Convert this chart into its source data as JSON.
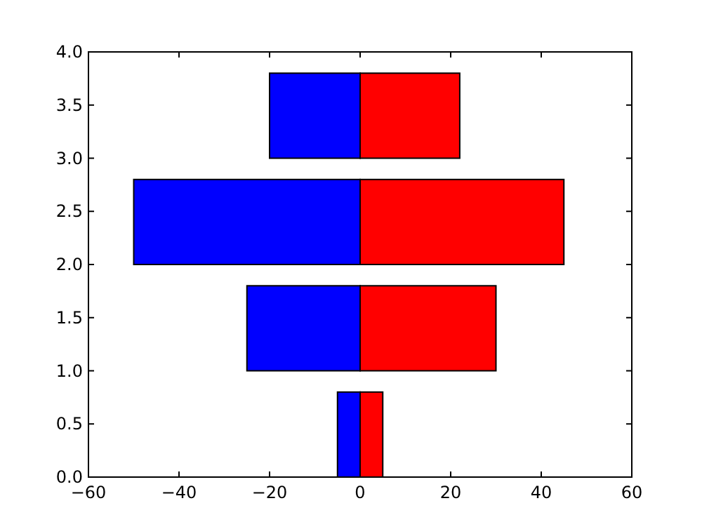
{
  "chart_data": {
    "type": "bar",
    "orientation": "horizontal",
    "x": [
      0.4,
      1.4,
      2.4,
      3.4
    ],
    "series": [
      {
        "color": "#0000ff",
        "values": [
          -5,
          -25,
          -50,
          -20
        ]
      },
      {
        "color": "#ff0000",
        "values": [
          5,
          30,
          45,
          22
        ]
      }
    ],
    "xlim": [
      -60,
      60
    ],
    "xticks": [
      {
        "value": -60,
        "label": "−60"
      },
      {
        "value": -40,
        "label": "−40"
      },
      {
        "value": -20,
        "label": "−20"
      },
      0,
      20,
      40,
      60
    ],
    "ylim": [
      0,
      4
    ],
    "yticks": [
      {
        "value": 0,
        "label": "0.0"
      },
      {
        "value": 0.5,
        "label": "0.5"
      },
      {
        "value": 1,
        "label": "1.0"
      },
      {
        "value": 1.5,
        "label": "1.5"
      },
      {
        "value": 2,
        "label": "2.0"
      },
      {
        "value": 2.5,
        "label": "2.5"
      },
      {
        "value": 3,
        "label": "3.0"
      },
      {
        "value": 3.5,
        "label": "3.5"
      },
      {
        "value": 4,
        "label": "4.0"
      }
    ],
    "stacked": true,
    "grid": false
  }
}
